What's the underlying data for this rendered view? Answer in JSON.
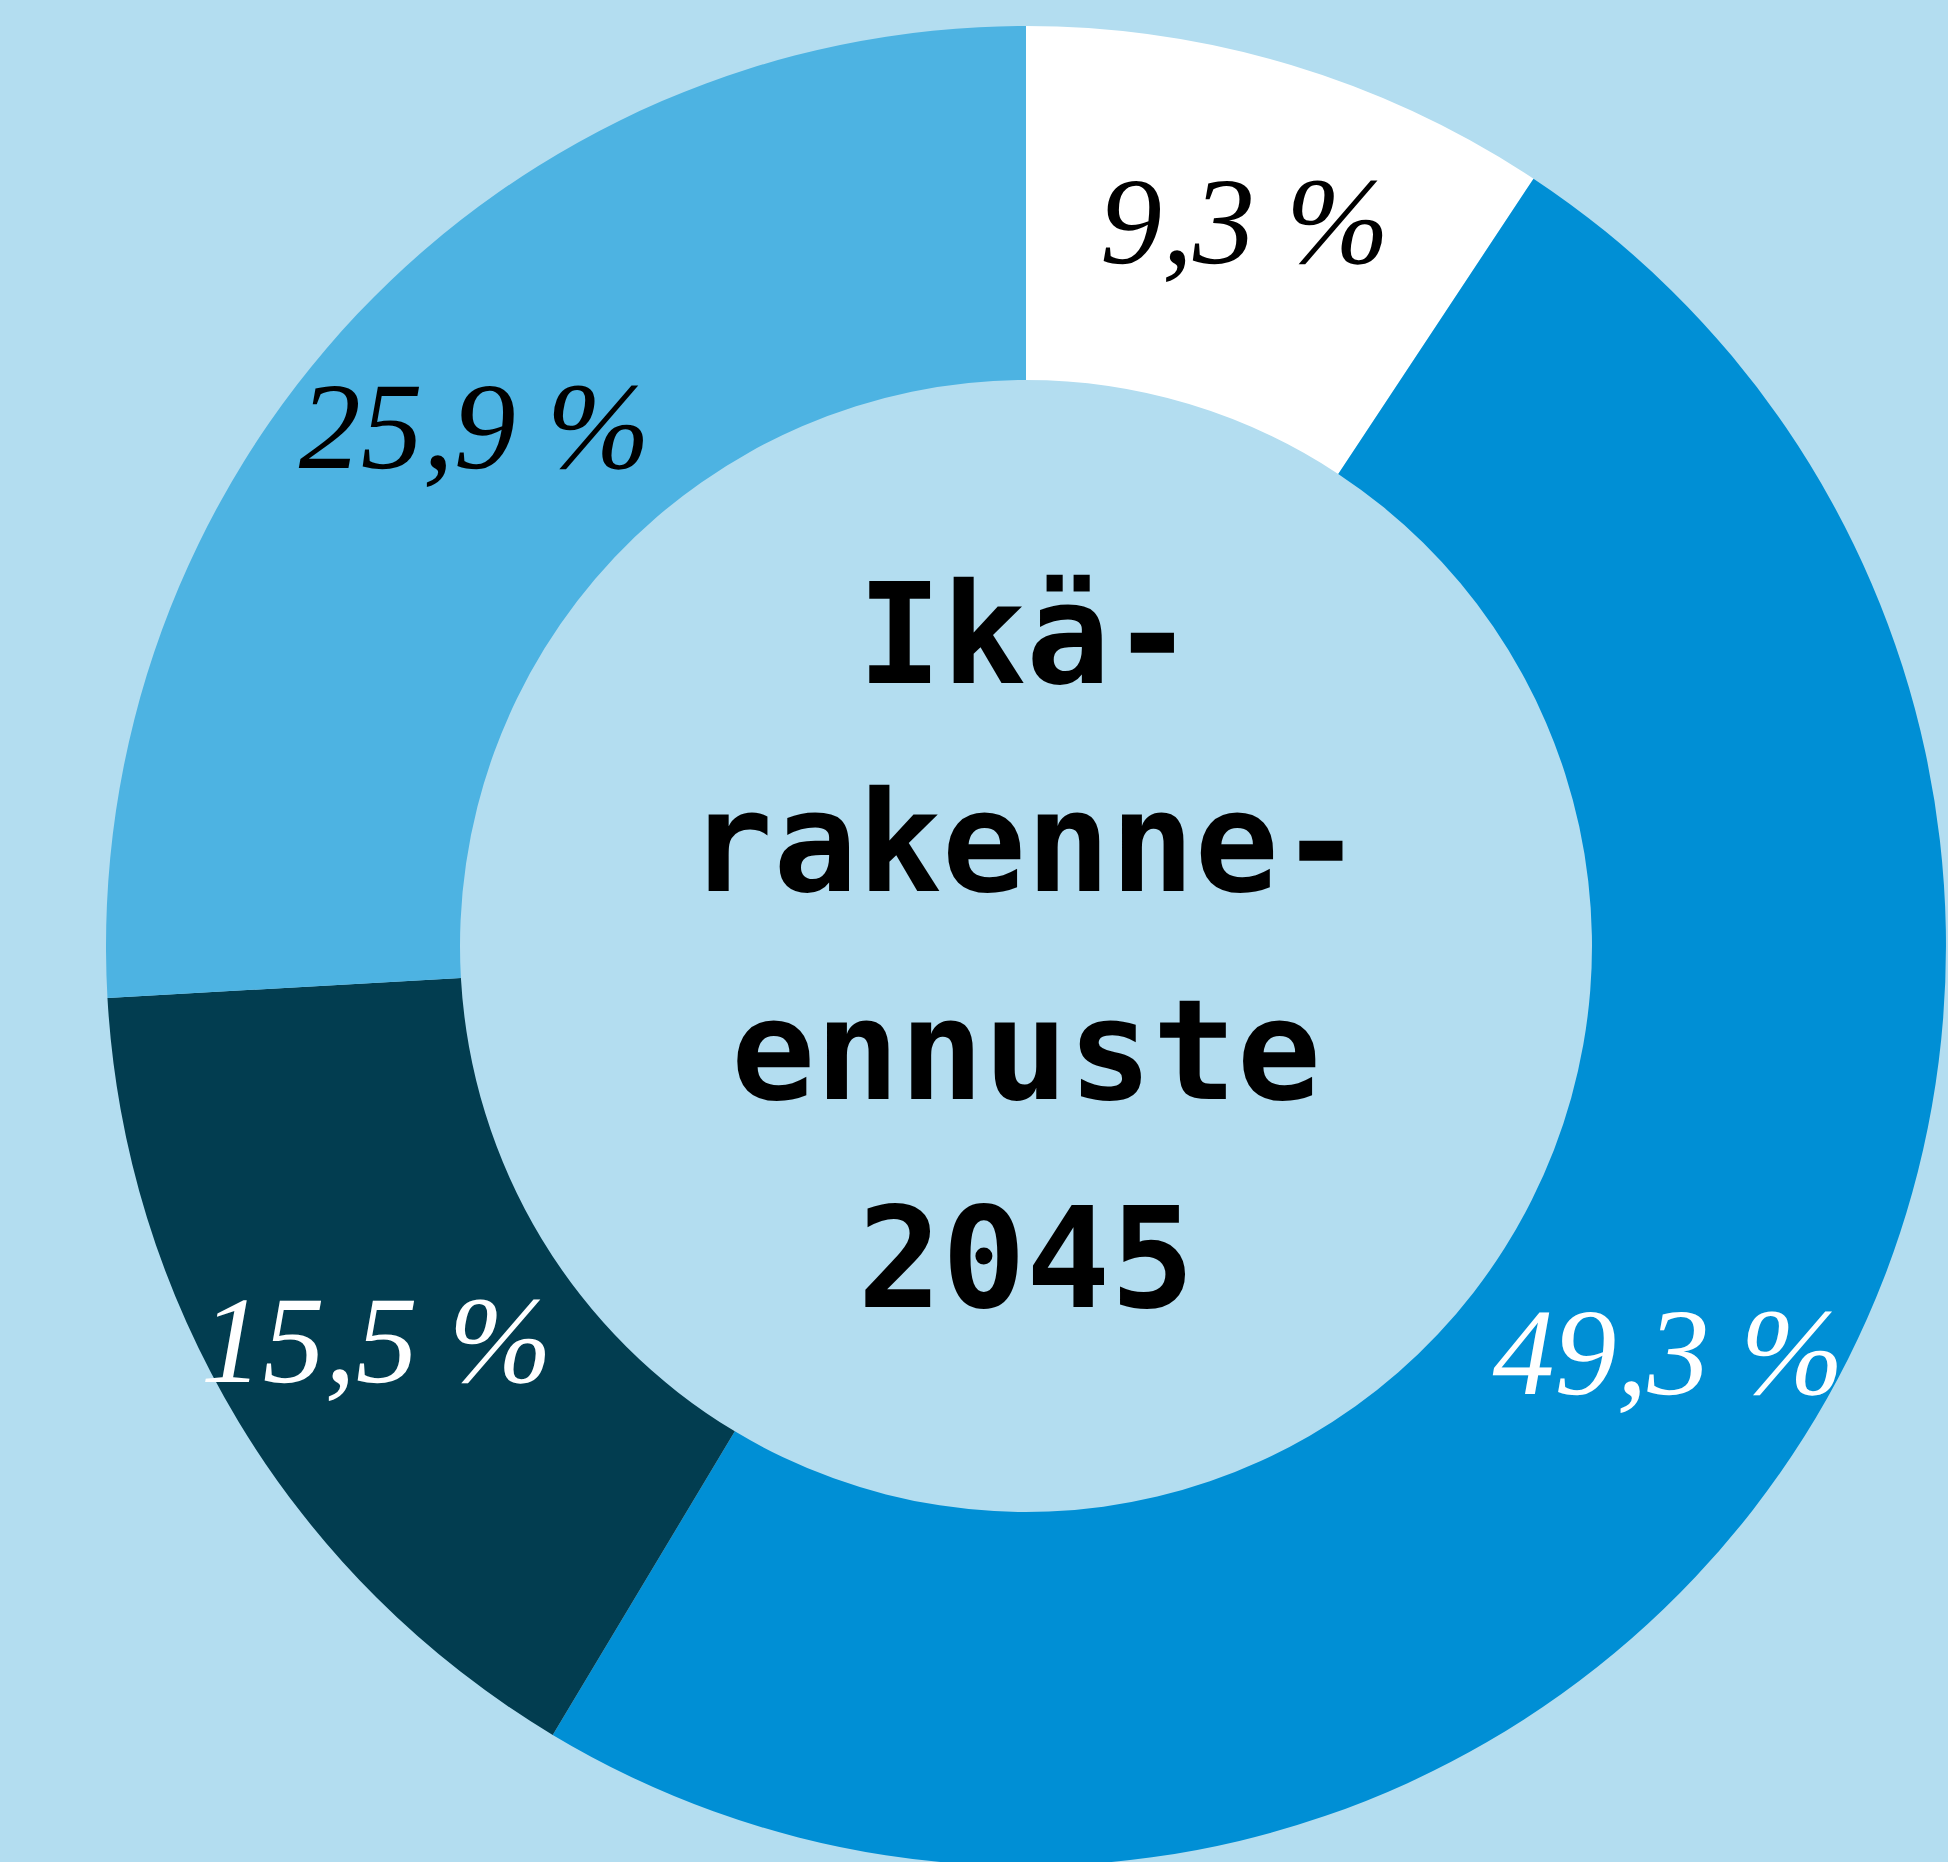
{
  "chart_data": {
    "type": "donut",
    "title": "Ikä- rakenne- ennuste 2045",
    "categories": [
      null,
      null,
      null,
      null
    ],
    "values": [
      9.3,
      49.3,
      15.5,
      25.9
    ],
    "value_labels": [
      "9,3 %",
      "49,3 %",
      "15,5 %",
      "25,9 %"
    ],
    "colors": [
      "#ffffff",
      "#008fd5",
      "#023d50",
      "#4db3e2"
    ]
  }
}
